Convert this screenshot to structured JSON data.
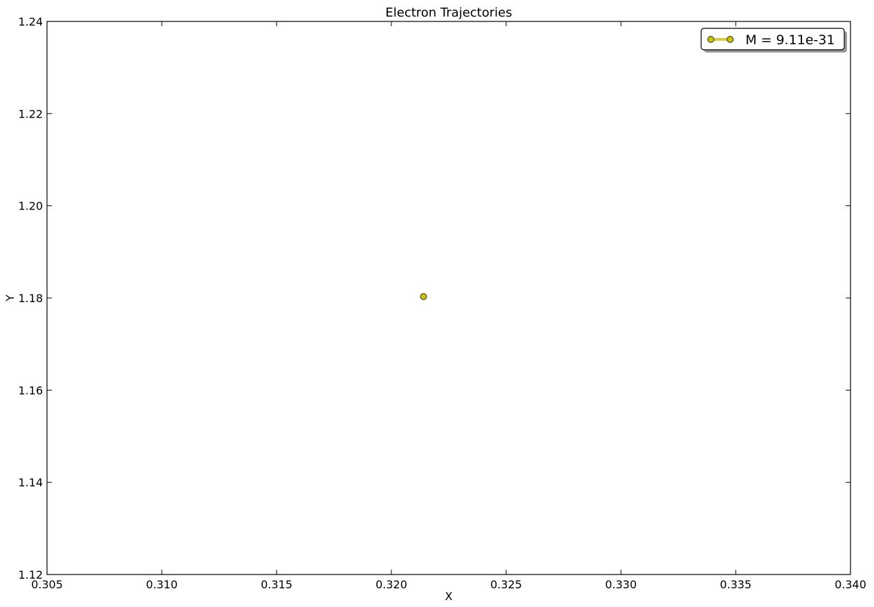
{
  "chart_data": {
    "type": "scatter",
    "title": "Electron Trajectories",
    "xlabel": "X",
    "ylabel": "Y",
    "xlim": [
      0.305,
      0.34
    ],
    "ylim": [
      1.12,
      1.24
    ],
    "xticks": [
      "0.305",
      "0.310",
      "0.315",
      "0.320",
      "0.325",
      "0.330",
      "0.335",
      "0.340"
    ],
    "yticks": [
      "1.12",
      "1.14",
      "1.16",
      "1.18",
      "1.20",
      "1.22",
      "1.24"
    ],
    "grid": false,
    "legend_position": "top-right",
    "series": [
      {
        "name": "M = 9.11e-31",
        "color": "#c8c000",
        "line_color": "#d4cc3a",
        "marker": "circle",
        "points": [
          {
            "x": 0.3214,
            "y": 1.1803
          }
        ]
      }
    ]
  }
}
